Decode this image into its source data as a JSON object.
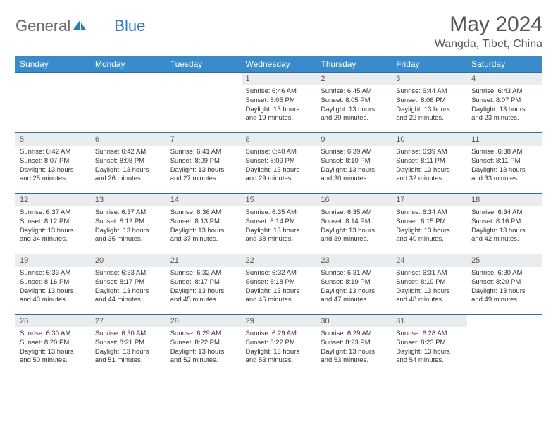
{
  "brand": {
    "word1": "General",
    "word2": "Blue"
  },
  "header": {
    "title": "May 2024",
    "location": "Wangda, Tibet, China"
  },
  "colors": {
    "header_bg": "#3a8bca",
    "header_text": "#ffffff",
    "daynum_bg": "#e9edef",
    "rule": "#2d6fa3",
    "brand_gray": "#6b6b6b",
    "brand_blue": "#2b7bbf"
  },
  "weekdays": [
    "Sunday",
    "Monday",
    "Tuesday",
    "Wednesday",
    "Thursday",
    "Friday",
    "Saturday"
  ],
  "layout": {
    "first_weekday_index": 3,
    "days_in_month": 31
  },
  "days": {
    "1": {
      "sunrise": "6:46 AM",
      "sunset": "8:05 PM",
      "daylight": "13 hours and 19 minutes."
    },
    "2": {
      "sunrise": "6:45 AM",
      "sunset": "8:05 PM",
      "daylight": "13 hours and 20 minutes."
    },
    "3": {
      "sunrise": "6:44 AM",
      "sunset": "8:06 PM",
      "daylight": "13 hours and 22 minutes."
    },
    "4": {
      "sunrise": "6:43 AM",
      "sunset": "8:07 PM",
      "daylight": "13 hours and 23 minutes."
    },
    "5": {
      "sunrise": "6:42 AM",
      "sunset": "8:07 PM",
      "daylight": "13 hours and 25 minutes."
    },
    "6": {
      "sunrise": "6:42 AM",
      "sunset": "8:08 PM",
      "daylight": "13 hours and 26 minutes."
    },
    "7": {
      "sunrise": "6:41 AM",
      "sunset": "8:09 PM",
      "daylight": "13 hours and 27 minutes."
    },
    "8": {
      "sunrise": "6:40 AM",
      "sunset": "8:09 PM",
      "daylight": "13 hours and 29 minutes."
    },
    "9": {
      "sunrise": "6:39 AM",
      "sunset": "8:10 PM",
      "daylight": "13 hours and 30 minutes."
    },
    "10": {
      "sunrise": "6:39 AM",
      "sunset": "8:11 PM",
      "daylight": "13 hours and 32 minutes."
    },
    "11": {
      "sunrise": "6:38 AM",
      "sunset": "8:11 PM",
      "daylight": "13 hours and 33 minutes."
    },
    "12": {
      "sunrise": "6:37 AM",
      "sunset": "8:12 PM",
      "daylight": "13 hours and 34 minutes."
    },
    "13": {
      "sunrise": "6:37 AM",
      "sunset": "8:12 PM",
      "daylight": "13 hours and 35 minutes."
    },
    "14": {
      "sunrise": "6:36 AM",
      "sunset": "8:13 PM",
      "daylight": "13 hours and 37 minutes."
    },
    "15": {
      "sunrise": "6:35 AM",
      "sunset": "8:14 PM",
      "daylight": "13 hours and 38 minutes."
    },
    "16": {
      "sunrise": "6:35 AM",
      "sunset": "8:14 PM",
      "daylight": "13 hours and 39 minutes."
    },
    "17": {
      "sunrise": "6:34 AM",
      "sunset": "8:15 PM",
      "daylight": "13 hours and 40 minutes."
    },
    "18": {
      "sunrise": "6:34 AM",
      "sunset": "8:16 PM",
      "daylight": "13 hours and 42 minutes."
    },
    "19": {
      "sunrise": "6:33 AM",
      "sunset": "8:16 PM",
      "daylight": "13 hours and 43 minutes."
    },
    "20": {
      "sunrise": "6:33 AM",
      "sunset": "8:17 PM",
      "daylight": "13 hours and 44 minutes."
    },
    "21": {
      "sunrise": "6:32 AM",
      "sunset": "8:17 PM",
      "daylight": "13 hours and 45 minutes."
    },
    "22": {
      "sunrise": "6:32 AM",
      "sunset": "8:18 PM",
      "daylight": "13 hours and 46 minutes."
    },
    "23": {
      "sunrise": "6:31 AM",
      "sunset": "8:19 PM",
      "daylight": "13 hours and 47 minutes."
    },
    "24": {
      "sunrise": "6:31 AM",
      "sunset": "8:19 PM",
      "daylight": "13 hours and 48 minutes."
    },
    "25": {
      "sunrise": "6:30 AM",
      "sunset": "8:20 PM",
      "daylight": "13 hours and 49 minutes."
    },
    "26": {
      "sunrise": "6:30 AM",
      "sunset": "8:20 PM",
      "daylight": "13 hours and 50 minutes."
    },
    "27": {
      "sunrise": "6:30 AM",
      "sunset": "8:21 PM",
      "daylight": "13 hours and 51 minutes."
    },
    "28": {
      "sunrise": "6:29 AM",
      "sunset": "8:22 PM",
      "daylight": "13 hours and 52 minutes."
    },
    "29": {
      "sunrise": "6:29 AM",
      "sunset": "8:22 PM",
      "daylight": "13 hours and 53 minutes."
    },
    "30": {
      "sunrise": "6:29 AM",
      "sunset": "8:23 PM",
      "daylight": "13 hours and 53 minutes."
    },
    "31": {
      "sunrise": "6:28 AM",
      "sunset": "8:23 PM",
      "daylight": "13 hours and 54 minutes."
    }
  },
  "labels": {
    "sunrise": "Sunrise:",
    "sunset": "Sunset:",
    "daylight": "Daylight:"
  }
}
